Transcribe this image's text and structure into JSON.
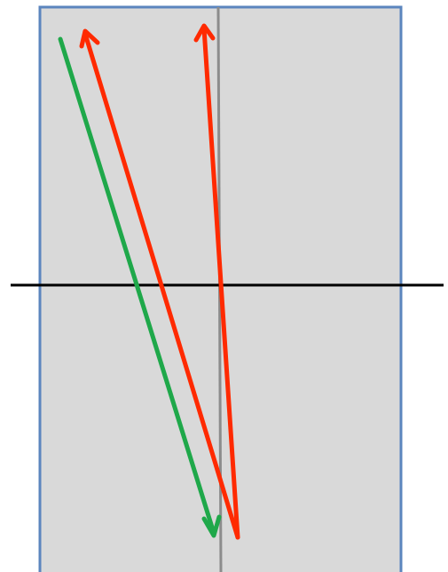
{
  "colors": {
    "background": "#ffffff",
    "panel_fill": "#d9d9d9",
    "panel_border": "#5b85be",
    "vertical_line": "#8c8c8c",
    "horizontal_line": "#000000",
    "green_arrow": "#1fa84a",
    "red_arrow": "#ff2a00"
  },
  "elements": {
    "panel": "rectangle",
    "vertical_line": "line",
    "horizontal_line": "line",
    "green_arrow": "arrow-down",
    "red_arrow_left": "arrow-up",
    "red_arrow_center": "arrow-up"
  }
}
